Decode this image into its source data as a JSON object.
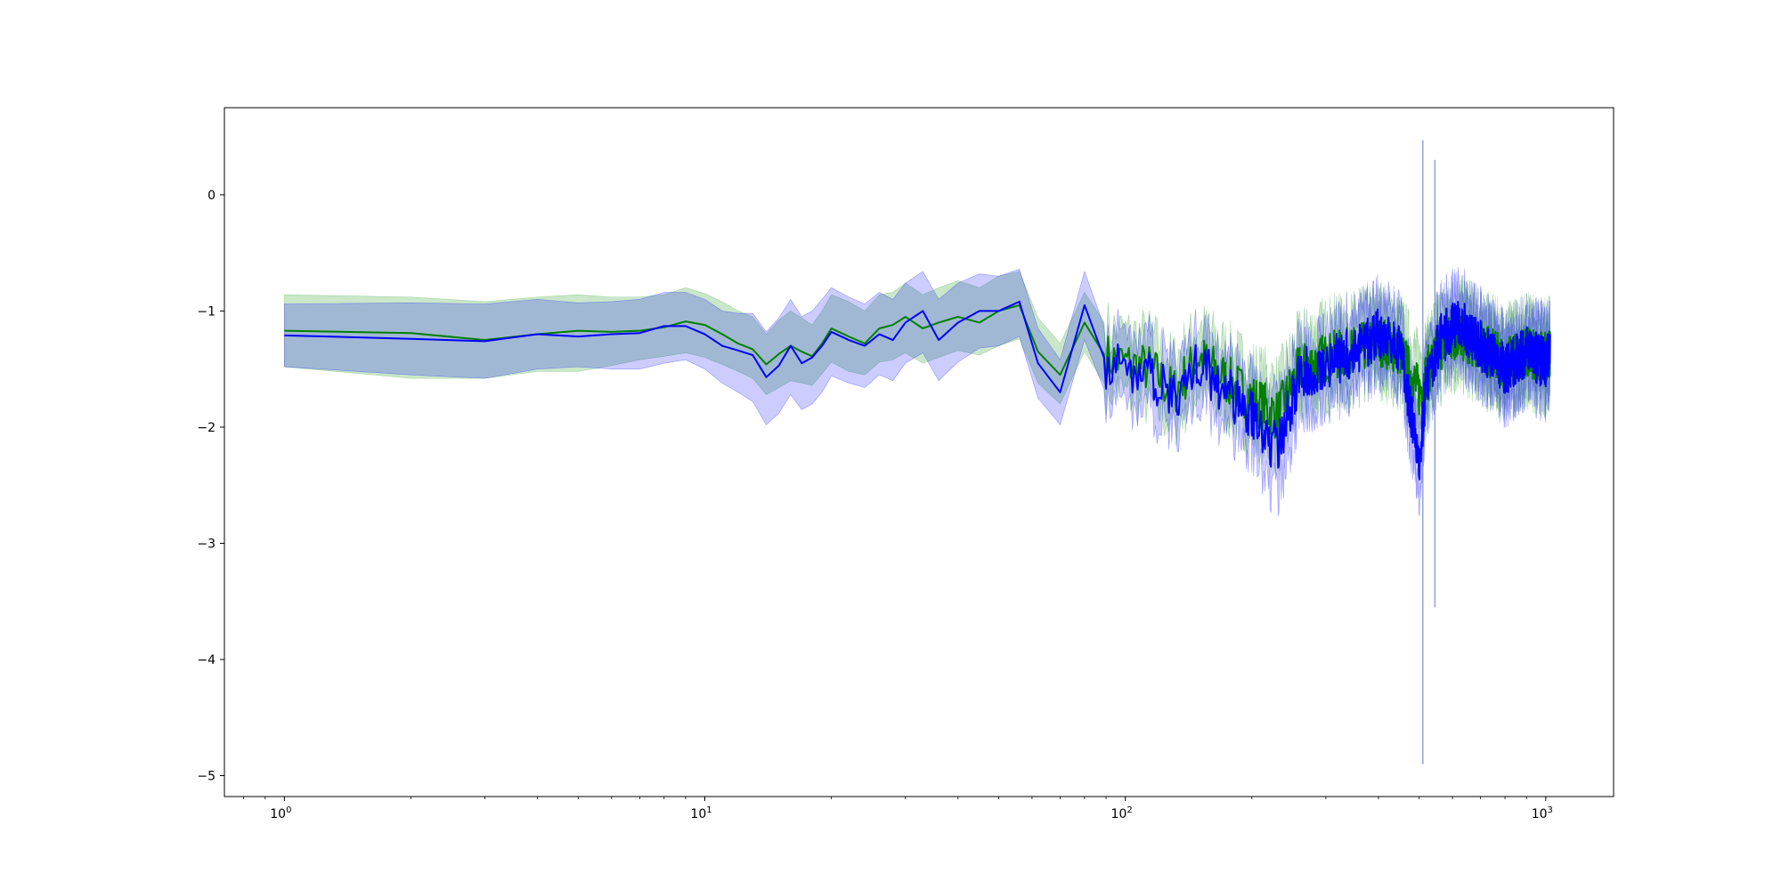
{
  "chart_data": {
    "type": "line",
    "title": "",
    "xlabel": "",
    "ylabel": "",
    "xscale": "log",
    "xlim": [
      0.72,
      1450
    ],
    "ylim": [
      -5.18,
      0.75
    ],
    "grid": false,
    "legend": "none",
    "x_ticks": [
      {
        "value": 1,
        "base": "10",
        "exp": "0"
      },
      {
        "value": 10,
        "base": "10",
        "exp": "1"
      },
      {
        "value": 100,
        "base": "10",
        "exp": "2"
      },
      {
        "value": 1000,
        "base": "10",
        "exp": "3"
      }
    ],
    "y_ticks": [
      {
        "value": 0,
        "label": "0"
      },
      {
        "value": -1,
        "label": "−1"
      },
      {
        "value": -2,
        "label": "−2"
      },
      {
        "value": -3,
        "label": "−3"
      },
      {
        "value": -4,
        "label": "−4"
      },
      {
        "value": -5,
        "label": "−5"
      }
    ],
    "series": [
      {
        "color": "#008000",
        "band_color": "#2ca02c",
        "band_opacity": 0.25,
        "x": [
          1,
          2,
          3,
          4,
          5,
          6,
          7,
          8,
          9,
          10,
          11,
          12,
          13,
          14,
          15,
          16,
          17,
          18,
          19,
          20,
          22,
          24,
          26,
          28,
          30,
          33,
          36,
          40,
          45,
          50,
          56,
          62,
          70,
          80,
          90,
          100,
          115,
          130,
          150,
          175,
          200,
          230,
          260,
          300,
          350,
          400,
          450,
          500,
          520,
          560,
          620,
          700,
          800,
          900,
          1000,
          1024
        ],
        "y": [
          -1.17,
          -1.19,
          -1.25,
          -1.2,
          -1.17,
          -1.18,
          -1.17,
          -1.14,
          -1.09,
          -1.12,
          -1.2,
          -1.28,
          -1.33,
          -1.46,
          -1.37,
          -1.3,
          -1.35,
          -1.39,
          -1.28,
          -1.15,
          -1.22,
          -1.28,
          -1.15,
          -1.12,
          -1.05,
          -1.15,
          -1.1,
          -1.05,
          -1.1,
          -1.0,
          -0.95,
          -1.35,
          -1.55,
          -1.1,
          -1.4,
          -1.45,
          -1.5,
          -1.7,
          -1.4,
          -1.6,
          -1.75,
          -1.9,
          -1.5,
          -1.4,
          -1.35,
          -1.25,
          -1.35,
          -1.7,
          -1.55,
          -1.3,
          -1.2,
          -1.3,
          -1.45,
          -1.35,
          -1.4,
          -1.35
        ],
        "lower": [
          -1.48,
          -1.58,
          -1.58,
          -1.52,
          -1.52,
          -1.47,
          -1.42,
          -1.39,
          -1.36,
          -1.4,
          -1.46,
          -1.52,
          -1.58,
          -1.72,
          -1.66,
          -1.6,
          -1.62,
          -1.64,
          -1.54,
          -1.44,
          -1.52,
          -1.55,
          -1.44,
          -1.42,
          -1.36,
          -1.45,
          -1.4,
          -1.34,
          -1.38,
          -1.3,
          -1.24,
          -1.62,
          -1.8,
          -1.35,
          -1.65,
          -1.72,
          -1.8,
          -1.98,
          -1.68,
          -1.88,
          -2.02,
          -2.2,
          -1.8,
          -1.68,
          -1.63,
          -1.52,
          -1.65,
          -2.0,
          -1.85,
          -1.6,
          -1.48,
          -1.58,
          -1.72,
          -1.62,
          -1.68,
          -1.63
        ],
        "upper": [
          -0.86,
          -0.88,
          -0.92,
          -0.88,
          -0.86,
          -0.88,
          -0.88,
          -0.86,
          -0.8,
          -0.85,
          -0.92,
          -1.0,
          -1.05,
          -1.2,
          -1.08,
          -1.0,
          -1.06,
          -1.12,
          -1.0,
          -0.86,
          -0.92,
          -1.0,
          -0.86,
          -0.84,
          -0.76,
          -0.86,
          -0.8,
          -0.74,
          -0.8,
          -0.7,
          -0.66,
          -1.06,
          -1.28,
          -0.84,
          -1.12,
          -1.18,
          -1.2,
          -1.42,
          -1.12,
          -1.3,
          -1.46,
          -1.6,
          -1.2,
          -1.1,
          -1.05,
          -0.96,
          -1.05,
          -1.4,
          -1.26,
          -1.0,
          -0.9,
          -1.02,
          -1.16,
          -1.06,
          -1.12,
          -1.06
        ]
      },
      {
        "color": "#0000ff",
        "band_color": "#0000ff",
        "band_opacity": 0.2,
        "x": [
          1,
          2,
          3,
          4,
          5,
          6,
          7,
          8,
          9,
          10,
          11,
          12,
          13,
          14,
          15,
          16,
          17,
          18,
          19,
          20,
          22,
          24,
          26,
          28,
          30,
          33,
          36,
          40,
          45,
          50,
          56,
          62,
          70,
          80,
          90,
          100,
          115,
          130,
          150,
          175,
          200,
          230,
          260,
          300,
          350,
          400,
          450,
          500,
          520,
          560,
          620,
          700,
          800,
          900,
          1000,
          1024
        ],
        "y": [
          -1.21,
          -1.24,
          -1.26,
          -1.2,
          -1.22,
          -1.2,
          -1.19,
          -1.13,
          -1.13,
          -1.2,
          -1.3,
          -1.34,
          -1.38,
          -1.57,
          -1.47,
          -1.3,
          -1.45,
          -1.4,
          -1.3,
          -1.18,
          -1.25,
          -1.3,
          -1.2,
          -1.25,
          -1.1,
          -1.0,
          -1.25,
          -1.1,
          -1.0,
          -1.0,
          -0.92,
          -1.45,
          -1.7,
          -0.95,
          -1.45,
          -1.5,
          -1.55,
          -1.75,
          -1.45,
          -1.7,
          -1.9,
          -2.2,
          -1.55,
          -1.45,
          -1.35,
          -1.2,
          -1.3,
          -2.3,
          -1.6,
          -1.25,
          -1.1,
          -1.3,
          -1.5,
          -1.35,
          -1.45,
          -1.35
        ],
        "lower": [
          -1.48,
          -1.55,
          -1.58,
          -1.5,
          -1.48,
          -1.5,
          -1.5,
          -1.45,
          -1.42,
          -1.5,
          -1.62,
          -1.7,
          -1.78,
          -1.98,
          -1.88,
          -1.72,
          -1.85,
          -1.8,
          -1.7,
          -1.56,
          -1.62,
          -1.66,
          -1.55,
          -1.6,
          -1.45,
          -1.36,
          -1.6,
          -1.44,
          -1.32,
          -1.3,
          -1.22,
          -1.75,
          -1.98,
          -1.25,
          -1.72,
          -1.8,
          -1.86,
          -2.05,
          -1.74,
          -2.0,
          -2.2,
          -2.6,
          -1.85,
          -1.75,
          -1.65,
          -1.48,
          -1.6,
          -2.6,
          -1.88,
          -1.52,
          -1.38,
          -1.58,
          -1.78,
          -1.62,
          -1.74,
          -1.62
        ],
        "upper": [
          -0.94,
          -0.93,
          -0.94,
          -0.9,
          -0.93,
          -0.92,
          -0.9,
          -0.84,
          -0.84,
          -0.9,
          -1.0,
          -1.02,
          -1.02,
          -1.18,
          -1.06,
          -0.9,
          -1.05,
          -1.0,
          -0.9,
          -0.8,
          -0.88,
          -0.94,
          -0.84,
          -0.9,
          -0.76,
          -0.66,
          -0.9,
          -0.76,
          -0.68,
          -0.7,
          -0.64,
          -1.15,
          -1.42,
          -0.66,
          -1.18,
          -1.2,
          -1.24,
          -1.45,
          -1.16,
          -1.4,
          -1.6,
          -1.8,
          -1.25,
          -1.15,
          -1.05,
          -0.92,
          -1.0,
          -2.0,
          -1.32,
          -0.98,
          -0.82,
          -1.02,
          -1.22,
          -1.08,
          -1.16,
          -1.08
        ]
      }
    ],
    "spikes": [
      {
        "x": 510,
        "min": -4.9,
        "max": 0.47
      },
      {
        "x": 545,
        "min": -3.55,
        "max": 0.3
      }
    ],
    "noise": {
      "start_x": 90,
      "amplitude": 0.22,
      "seed": 7
    }
  }
}
